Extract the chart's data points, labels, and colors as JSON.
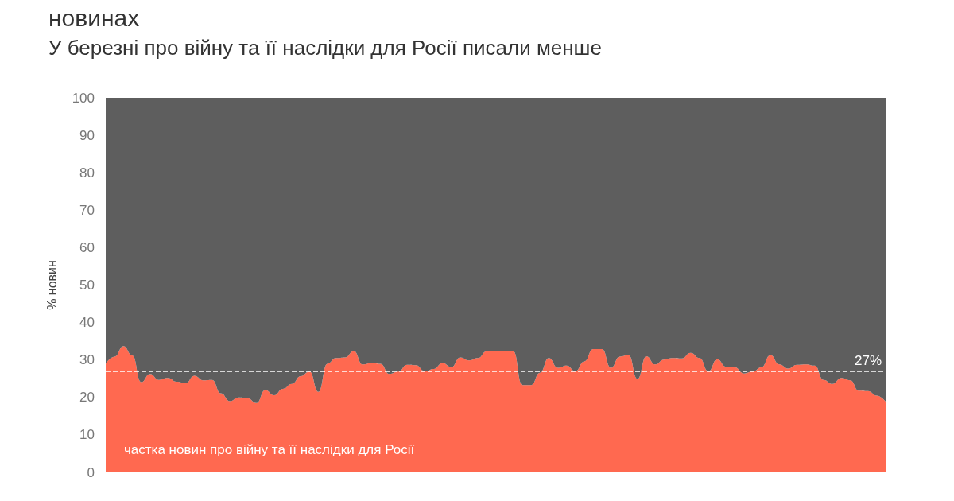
{
  "chart_data": {
    "type": "area",
    "title": "новинах",
    "subtitle": "У березні про війну та її наслідки для Росії писали менше",
    "ylabel": "% новин",
    "stacked": true,
    "legend": false,
    "grid": false,
    "categories": [
      null,
      null,
      null,
      null,
      null,
      null,
      null,
      null,
      null,
      null,
      null,
      null,
      null,
      null,
      null,
      null,
      null,
      null,
      null,
      null,
      null,
      null,
      null,
      null,
      null,
      null,
      null,
      null,
      null,
      null,
      null,
      null,
      null,
      null,
      null,
      null,
      null,
      null,
      null,
      null,
      null,
      null,
      null,
      null,
      null,
      null,
      null,
      null,
      null,
      null,
      null,
      null,
      null,
      null,
      null,
      null,
      null,
      null,
      null,
      null,
      null,
      null,
      null,
      null,
      null,
      null,
      null,
      null,
      null,
      null,
      null,
      null,
      null,
      null,
      null,
      null,
      null,
      null,
      null,
      null,
      null,
      null,
      null,
      null,
      null,
      null,
      null,
      null,
      null
    ],
    "ylim": [
      0,
      100
    ],
    "yticks": [
      0,
      10,
      20,
      30,
      40,
      50,
      60,
      70,
      80,
      90,
      100
    ],
    "series": [
      {
        "name": "частка новин про війну та її наслідки для Росії",
        "color": "#ff6950",
        "values": [
          29.0,
          30.9,
          33.7,
          31.2,
          24.1,
          26.3,
          24.7,
          25.2,
          24.2,
          23.8,
          25.8,
          24.6,
          24.7,
          21.1,
          19.0,
          20.0,
          19.8,
          18.5,
          22.0,
          20.6,
          22.3,
          23.6,
          25.7,
          26.9,
          21.5,
          29.0,
          30.5,
          30.7,
          32.4,
          28.8,
          29.2,
          29.0,
          26.3,
          26.9,
          28.7,
          28.6,
          27.0,
          27.6,
          29.2,
          28.1,
          30.7,
          29.9,
          30.5,
          32.4,
          32.3,
          32.3,
          32.3,
          23.3,
          23.3,
          26.6,
          30.5,
          27.9,
          28.5,
          27.0,
          29.6,
          32.9,
          32.9,
          27.9,
          30.9,
          31.3,
          24.9,
          31.0,
          28.8,
          30.1,
          30.5,
          30.4,
          31.9,
          30.5,
          27.0,
          30.2,
          28.2,
          28.0,
          26.4,
          26.9,
          28.1,
          31.3,
          28.8,
          27.7,
          28.7,
          28.8,
          28.5,
          24.7,
          23.6,
          25.2,
          24.6,
          21.8,
          21.7,
          20.5,
          18.9
        ]
      },
      {
        "color": "#5e5e5e",
        "values": [
          71.0,
          69.1,
          66.3,
          68.8,
          75.9,
          73.7,
          75.3,
          74.8,
          75.8,
          76.2,
          74.2,
          75.4,
          75.3,
          78.9,
          81.0,
          80.0,
          80.2,
          81.5,
          78.0,
          79.4,
          77.7,
          76.4,
          74.3,
          73.1,
          78.5,
          71.0,
          69.5,
          69.3,
          67.6,
          71.2,
          70.8,
          71.0,
          73.7,
          73.1,
          71.3,
          71.4,
          73.0,
          72.4,
          70.8,
          71.9,
          69.3,
          70.1,
          69.5,
          67.6,
          67.7,
          67.7,
          67.7,
          76.7,
          76.7,
          73.4,
          69.5,
          72.1,
          71.5,
          73.0,
          70.4,
          67.1,
          67.1,
          72.1,
          69.1,
          68.7,
          75.1,
          69.0,
          71.2,
          69.9,
          69.5,
          69.6,
          68.1,
          69.5,
          73.0,
          69.8,
          71.8,
          72.0,
          73.6,
          73.1,
          71.9,
          68.7,
          71.2,
          72.3,
          71.3,
          71.2,
          71.5,
          75.3,
          76.4,
          74.8,
          75.4,
          78.2,
          78.3,
          79.5,
          81.1
        ]
      }
    ],
    "ref_lines": [
      {
        "axis": "y",
        "value": 27,
        "label": "27%",
        "color": "#ffffff",
        "line_style": "dashed"
      }
    ]
  }
}
